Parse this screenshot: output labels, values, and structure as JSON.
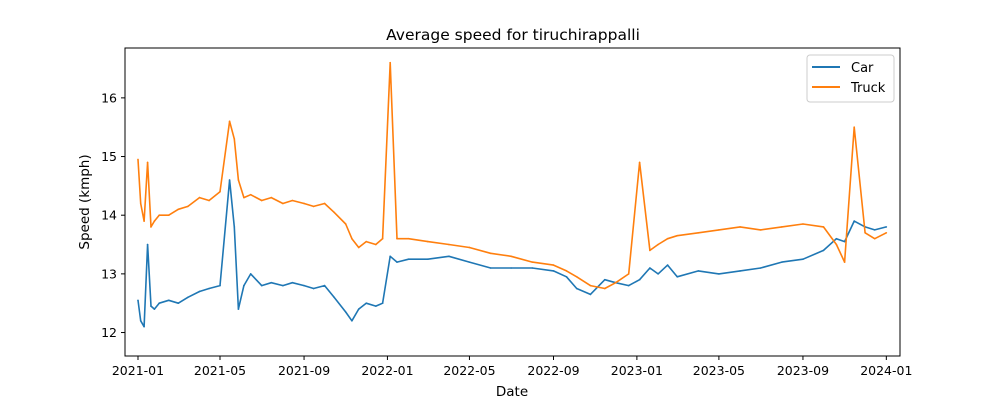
{
  "chart_data": {
    "type": "line",
    "title": "Average speed for tiruchirappalli",
    "xlabel": "Date",
    "ylabel": "Speed (kmph)",
    "xlim": [
      "2020-12-13",
      "2024-01-21"
    ],
    "ylim": [
      11.6,
      16.85
    ],
    "x_ticks": [
      "2021-01",
      "2021-05",
      "2021-09",
      "2022-01",
      "2022-05",
      "2022-09",
      "2023-01",
      "2023-05",
      "2023-09",
      "2024-01"
    ],
    "y_ticks": [
      12,
      13,
      14,
      15,
      16
    ],
    "grid": false,
    "legend": {
      "position": "top-right",
      "entries": [
        "Car",
        "Truck"
      ]
    },
    "series": [
      {
        "name": "Car",
        "color": "#1f77b4",
        "x": [
          "2021-01-01",
          "2021-01-05",
          "2021-01-10",
          "2021-01-15",
          "2021-01-20",
          "2021-01-25",
          "2021-02-01",
          "2021-02-15",
          "2021-03-01",
          "2021-03-15",
          "2021-04-01",
          "2021-04-15",
          "2021-05-01",
          "2021-05-15",
          "2021-05-22",
          "2021-05-28",
          "2021-06-05",
          "2021-06-15",
          "2021-07-01",
          "2021-07-15",
          "2021-08-01",
          "2021-08-15",
          "2021-09-01",
          "2021-09-15",
          "2021-10-01",
          "2021-10-15",
          "2021-11-01",
          "2021-11-10",
          "2021-11-20",
          "2021-12-01",
          "2021-12-15",
          "2021-12-25",
          "2022-01-05",
          "2022-01-15",
          "2022-02-01",
          "2022-03-01",
          "2022-04-01",
          "2022-05-01",
          "2022-06-01",
          "2022-07-01",
          "2022-08-01",
          "2022-09-01",
          "2022-09-20",
          "2022-10-05",
          "2022-10-25",
          "2022-11-15",
          "2022-12-01",
          "2022-12-20",
          "2023-01-05",
          "2023-01-20",
          "2023-02-01",
          "2023-02-15",
          "2023-03-01",
          "2023-04-01",
          "2023-05-01",
          "2023-06-01",
          "2023-07-01",
          "2023-08-01",
          "2023-09-01",
          "2023-10-01",
          "2023-10-20",
          "2023-11-01",
          "2023-11-15",
          "2023-12-01",
          "2023-12-15",
          "2024-01-01"
        ],
        "values": [
          12.55,
          12.2,
          12.1,
          13.5,
          12.45,
          12.4,
          12.5,
          12.55,
          12.5,
          12.6,
          12.7,
          12.75,
          12.8,
          14.6,
          13.8,
          12.4,
          12.8,
          13.0,
          12.8,
          12.85,
          12.8,
          12.85,
          12.8,
          12.75,
          12.8,
          12.6,
          12.35,
          12.2,
          12.4,
          12.5,
          12.45,
          12.5,
          13.3,
          13.2,
          13.25,
          13.25,
          13.3,
          13.2,
          13.1,
          13.1,
          13.1,
          13.05,
          12.95,
          12.75,
          12.65,
          12.9,
          12.85,
          12.8,
          12.9,
          13.1,
          13.0,
          13.15,
          12.95,
          13.05,
          13.0,
          13.05,
          13.1,
          13.2,
          13.25,
          13.4,
          13.6,
          13.55,
          13.9,
          13.8,
          13.75,
          13.8
        ]
      },
      {
        "name": "Truck",
        "color": "#ff7f0e",
        "x": [
          "2021-01-01",
          "2021-01-05",
          "2021-01-10",
          "2021-01-15",
          "2021-01-20",
          "2021-01-25",
          "2021-02-01",
          "2021-02-15",
          "2021-03-01",
          "2021-03-15",
          "2021-04-01",
          "2021-04-15",
          "2021-05-01",
          "2021-05-15",
          "2021-05-22",
          "2021-05-28",
          "2021-06-05",
          "2021-06-15",
          "2021-07-01",
          "2021-07-15",
          "2021-08-01",
          "2021-08-15",
          "2021-09-01",
          "2021-09-15",
          "2021-10-01",
          "2021-10-15",
          "2021-11-01",
          "2021-11-10",
          "2021-11-20",
          "2021-12-01",
          "2021-12-15",
          "2021-12-25",
          "2022-01-05",
          "2022-01-15",
          "2022-02-01",
          "2022-03-01",
          "2022-04-01",
          "2022-05-01",
          "2022-06-01",
          "2022-07-01",
          "2022-08-01",
          "2022-09-01",
          "2022-09-20",
          "2022-10-05",
          "2022-10-25",
          "2022-11-15",
          "2022-12-01",
          "2022-12-20",
          "2023-01-05",
          "2023-01-20",
          "2023-02-01",
          "2023-02-15",
          "2023-03-01",
          "2023-04-01",
          "2023-05-01",
          "2023-06-01",
          "2023-07-01",
          "2023-08-01",
          "2023-09-01",
          "2023-10-01",
          "2023-10-20",
          "2023-11-01",
          "2023-11-15",
          "2023-12-01",
          "2023-12-15",
          "2024-01-01"
        ],
        "values": [
          14.95,
          14.2,
          13.9,
          14.9,
          13.8,
          13.9,
          14.0,
          14.0,
          14.1,
          14.15,
          14.3,
          14.25,
          14.4,
          15.6,
          15.3,
          14.6,
          14.3,
          14.35,
          14.25,
          14.3,
          14.2,
          14.25,
          14.2,
          14.15,
          14.2,
          14.05,
          13.85,
          13.6,
          13.45,
          13.55,
          13.5,
          13.6,
          16.6,
          13.6,
          13.6,
          13.55,
          13.5,
          13.45,
          13.35,
          13.3,
          13.2,
          13.15,
          13.05,
          12.95,
          12.8,
          12.75,
          12.85,
          13.0,
          14.9,
          13.4,
          13.5,
          13.6,
          13.65,
          13.7,
          13.75,
          13.8,
          13.75,
          13.8,
          13.85,
          13.8,
          13.5,
          13.2,
          15.5,
          13.7,
          13.6,
          13.7
        ]
      }
    ]
  }
}
